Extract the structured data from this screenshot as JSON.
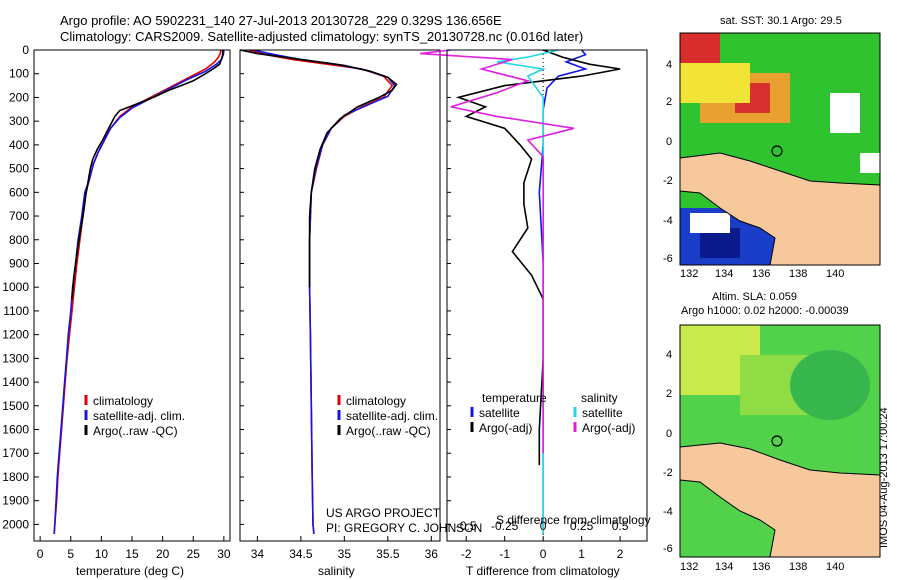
{
  "header": {
    "title_line1": "Argo profile: AO 5902231_140 27-Jul-2013 20130728_229 0.329S 136.656E",
    "title_line2": "Climatology: CARS2009. Satellite-adjusted climatology: synTS_20130728.nc (0.016d later)"
  },
  "colors": {
    "climatology": "#e00000",
    "satellite": "#1414e6",
    "argo": "#000000",
    "satellite_s": "#22d8e8",
    "argo_s": "#e020e0",
    "land": "#f7c89b"
  },
  "chart_data": [
    {
      "type": "line",
      "panel": "temperature",
      "xlabel": "temperature (deg C)",
      "ylabel": "",
      "xlim": [
        -1,
        31
      ],
      "ylim": [
        2070,
        0
      ],
      "xticks": [
        0,
        5,
        10,
        15,
        20,
        25,
        30
      ],
      "yticks": [
        0,
        100,
        200,
        300,
        400,
        500,
        600,
        700,
        800,
        900,
        1000,
        1100,
        1200,
        1300,
        1400,
        1500,
        1600,
        1700,
        1800,
        1900,
        2000
      ],
      "legend": [
        "climatology",
        "satellite-adj. clim.",
        "Argo(..raw -QC)"
      ],
      "grid": false,
      "series": [
        {
          "name": "climatology",
          "color": "#e00000",
          "points": [
            [
              29.5,
              0
            ],
            [
              29.4,
              15
            ],
            [
              29.1,
              30
            ],
            [
              28.5,
              50
            ],
            [
              27.0,
              80
            ],
            [
              24.0,
              120
            ],
            [
              21.0,
              160
            ],
            [
              18.0,
              200
            ],
            [
              15.0,
              240
            ],
            [
              13.0,
              280
            ],
            [
              11.5,
              330
            ],
            [
              10.5,
              380
            ],
            [
              9.5,
              430
            ],
            [
              8.7,
              480
            ],
            [
              8.0,
              550
            ],
            [
              7.5,
              600
            ],
            [
              7.0,
              700
            ],
            [
              6.5,
              800
            ],
            [
              6.0,
              900
            ],
            [
              5.6,
              1000
            ],
            [
              5.2,
              1100
            ],
            [
              4.8,
              1200
            ],
            [
              4.4,
              1300
            ],
            [
              4.1,
              1400
            ],
            [
              3.8,
              1500
            ],
            [
              3.5,
              1600
            ],
            [
              3.2,
              1700
            ],
            [
              2.9,
              1800
            ],
            [
              2.7,
              1900
            ],
            [
              2.4,
              2000
            ],
            [
              2.3,
              2040
            ]
          ]
        },
        {
          "name": "satellite-adj. clim.",
          "color": "#1414e6",
          "points": [
            [
              30.0,
              0
            ],
            [
              29.9,
              20
            ],
            [
              29.6,
              40
            ],
            [
              28.8,
              60
            ],
            [
              27.0,
              90
            ],
            [
              24.0,
              125
            ],
            [
              21.0,
              165
            ],
            [
              18.0,
              205
            ],
            [
              15.0,
              245
            ],
            [
              13.0,
              285
            ],
            [
              11.5,
              330
            ],
            [
              10.5,
              380
            ],
            [
              9.5,
              430
            ],
            [
              8.7,
              480
            ],
            [
              8.0,
              550
            ],
            [
              7.3,
              600
            ],
            [
              6.8,
              700
            ],
            [
              6.2,
              800
            ],
            [
              5.8,
              900
            ],
            [
              5.3,
              1000
            ],
            [
              5.0,
              1100
            ],
            [
              4.6,
              1200
            ],
            [
              4.3,
              1300
            ],
            [
              4.0,
              1400
            ],
            [
              3.7,
              1500
            ],
            [
              3.4,
              1600
            ],
            [
              3.1,
              1700
            ],
            [
              2.8,
              1800
            ],
            [
              2.6,
              1900
            ],
            [
              2.4,
              2000
            ],
            [
              2.3,
              2040
            ]
          ]
        },
        {
          "name": "Argo(..raw -QC)",
          "color": "#000000",
          "points": [
            [
              29.8,
              0
            ],
            [
              29.8,
              20
            ],
            [
              29.6,
              40
            ],
            [
              29.3,
              60
            ],
            [
              28.5,
              75
            ],
            [
              27.0,
              100
            ],
            [
              25.0,
              130
            ],
            [
              23.0,
              150
            ],
            [
              21.0,
              170
            ],
            [
              18.5,
              200
            ],
            [
              15.5,
              230
            ],
            [
              13.0,
              255
            ],
            [
              12.2,
              280
            ],
            [
              11.2,
              330
            ],
            [
              10.2,
              380
            ],
            [
              9.3,
              420
            ],
            [
              8.6,
              460
            ],
            [
              8.2,
              500
            ],
            [
              7.8,
              560
            ],
            [
              7.4,
              620
            ],
            [
              7.0,
              700
            ],
            [
              6.6,
              760
            ],
            [
              6.1,
              840
            ],
            [
              5.8,
              900
            ],
            [
              5.5,
              960
            ],
            [
              5.2,
              1050
            ]
          ]
        }
      ]
    },
    {
      "type": "line",
      "panel": "salinity",
      "xlabel": "salinity",
      "ylabel": "",
      "xlim": [
        33.8,
        36.1
      ],
      "ylim": [
        2070,
        0
      ],
      "xticks": [
        34,
        34.5,
        35,
        35.5,
        36
      ],
      "legend": [
        "climatology",
        "satellite-adj. clim.",
        "Argo(..raw -QC)"
      ],
      "annotation_line1": "US ARGO PROJECT",
      "annotation_line2": "PI: GREGORY C. JOHNSON",
      "grid": false,
      "series": [
        {
          "name": "climatology",
          "color": "#e00000",
          "points": [
            [
              33.9,
              0
            ],
            [
              34.1,
              20
            ],
            [
              34.4,
              40
            ],
            [
              34.8,
              60
            ],
            [
              35.2,
              80
            ],
            [
              35.45,
              110
            ],
            [
              35.55,
              150
            ],
            [
              35.45,
              200
            ],
            [
              35.2,
              240
            ],
            [
              35.0,
              280
            ],
            [
              34.85,
              330
            ],
            [
              34.75,
              400
            ],
            [
              34.68,
              500
            ],
            [
              34.62,
              600
            ],
            [
              34.6,
              800
            ],
            [
              34.6,
              1000
            ],
            [
              34.61,
              1200
            ],
            [
              34.62,
              1500
            ],
            [
              34.63,
              1800
            ],
            [
              34.64,
              2000
            ],
            [
              34.65,
              2040
            ]
          ]
        },
        {
          "name": "satellite-adj. clim.",
          "color": "#1414e6",
          "points": [
            [
              33.95,
              0
            ],
            [
              34.2,
              20
            ],
            [
              34.5,
              40
            ],
            [
              34.9,
              60
            ],
            [
              35.25,
              85
            ],
            [
              35.5,
              115
            ],
            [
              35.58,
              150
            ],
            [
              35.5,
              195
            ],
            [
              35.25,
              235
            ],
            [
              35.0,
              275
            ],
            [
              34.85,
              330
            ],
            [
              34.75,
              400
            ],
            [
              34.67,
              500
            ],
            [
              34.62,
              600
            ],
            [
              34.6,
              800
            ],
            [
              34.6,
              1000
            ],
            [
              34.61,
              1200
            ],
            [
              34.62,
              1500
            ],
            [
              34.63,
              1800
            ],
            [
              34.64,
              2000
            ],
            [
              34.65,
              2040
            ]
          ]
        },
        {
          "name": "Argo(..raw -QC)",
          "color": "#000000",
          "points": [
            [
              33.8,
              0
            ],
            [
              34.0,
              15
            ],
            [
              34.3,
              30
            ],
            [
              34.6,
              45
            ],
            [
              35.0,
              65
            ],
            [
              35.3,
              90
            ],
            [
              35.5,
              115
            ],
            [
              35.6,
              145
            ],
            [
              35.55,
              170
            ],
            [
              35.4,
              200
            ],
            [
              35.15,
              240
            ],
            [
              34.95,
              290
            ],
            [
              34.8,
              350
            ],
            [
              34.72,
              420
            ],
            [
              34.66,
              500
            ],
            [
              34.62,
              600
            ],
            [
              34.6,
              700
            ],
            [
              34.6,
              800
            ],
            [
              34.6,
              900
            ],
            [
              34.6,
              1000
            ]
          ]
        }
      ]
    },
    {
      "type": "line",
      "panel": "difference",
      "xlabel": "T difference from climatology",
      "xlabel_top": "S difference from climatology",
      "ylabel": "",
      "xlim": [
        -2.5,
        2.7
      ],
      "ylim": [
        2070,
        0
      ],
      "xticks": [
        -2,
        -1,
        0,
        1,
        2
      ],
      "s_ticks": [
        -0.5,
        -0.25,
        0,
        0.25,
        0.5
      ],
      "legend_left_header": "temperature",
      "legend_right_header": "salinity",
      "legend": [
        "satellite",
        "Argo(-adj)",
        "satellite",
        "Argo(-adj)"
      ],
      "grid": false,
      "series": [
        {
          "name": "temperature satellite",
          "color": "#1414e6",
          "points": [
            [
              1.0,
              0
            ],
            [
              1.1,
              20
            ],
            [
              0.6,
              50
            ],
            [
              1.1,
              80
            ],
            [
              0.4,
              110
            ],
            [
              0.1,
              160
            ],
            [
              0.0,
              250
            ],
            [
              0.0,
              400
            ],
            [
              -0.1,
              600
            ],
            [
              0.0,
              900
            ],
            [
              0.0,
              1400
            ],
            [
              0.0,
              2040
            ]
          ]
        },
        {
          "name": "temperature Argo(-adj)",
          "color": "#000000",
          "points": [
            [
              0.0,
              0
            ],
            [
              0.5,
              30
            ],
            [
              1.2,
              60
            ],
            [
              2.0,
              80
            ],
            [
              1.0,
              110
            ],
            [
              -1.0,
              150
            ],
            [
              -2.2,
              200
            ],
            [
              -1.5,
              240
            ],
            [
              -2.0,
              280
            ],
            [
              -1.0,
              330
            ],
            [
              -0.6,
              400
            ],
            [
              -0.3,
              460
            ],
            [
              -0.5,
              560
            ],
            [
              -0.5,
              650
            ],
            [
              -0.4,
              750
            ],
            [
              -0.8,
              850
            ],
            [
              -0.3,
              950
            ],
            [
              0.0,
              1050
            ],
            [
              0.0,
              1300
            ],
            [
              -0.1,
              1600
            ],
            [
              -0.1,
              1750
            ]
          ]
        },
        {
          "name": "salinity satellite",
          "color": "#22d8e8",
          "points": [
            [
              0.1,
              0
            ],
            [
              -0.1,
              30
            ],
            [
              -0.3,
              50
            ],
            [
              0.0,
              80
            ],
            [
              -0.1,
              110
            ],
            [
              0.0,
              200
            ],
            [
              0.0,
              400
            ],
            [
              0.0,
              700
            ],
            [
              0.0,
              1000
            ],
            [
              0.0,
              1500
            ],
            [
              0.0,
              2040
            ]
          ]
        },
        {
          "name": "salinity Argo(-adj)",
          "color": "#e020e0",
          "points": [
            [
              -0.6,
              0
            ],
            [
              -0.8,
              15
            ],
            [
              -0.2,
              40
            ],
            [
              -0.4,
              80
            ],
            [
              -0.1,
              130
            ],
            [
              -0.3,
              180
            ],
            [
              -0.6,
              240
            ],
            [
              -0.3,
              280
            ],
            [
              0.2,
              330
            ],
            [
              -0.1,
              380
            ],
            [
              0.0,
              450
            ],
            [
              0.0,
              600
            ],
            [
              0.0,
              900
            ],
            [
              0.0,
              1300
            ],
            [
              0.0,
              1700
            ]
          ]
        }
      ]
    }
  ],
  "maps": {
    "sst": {
      "label": "sat. SST: 30.1  Argo: 29.5",
      "xticks": [
        "132",
        "134",
        "136",
        "138",
        "140"
      ],
      "yticks": [
        "4",
        "2",
        "0",
        "-2",
        "-4",
        "-6"
      ],
      "marker": {
        "lon": 136.656,
        "lat": -0.329
      }
    },
    "sla": {
      "label_line1": "Altim. SLA: 0.059",
      "label_line2": "Argo h1000: 0.02  h2000: -0.00039",
      "xticks": [
        "132",
        "134",
        "136",
        "138",
        "140"
      ],
      "yticks": [
        "4",
        "2",
        "0",
        "-2",
        "-4",
        "-6"
      ],
      "marker": {
        "lon": 136.656,
        "lat": -0.329
      }
    },
    "stamp": "IMOS 04-Aug-2013 17:00:24"
  }
}
